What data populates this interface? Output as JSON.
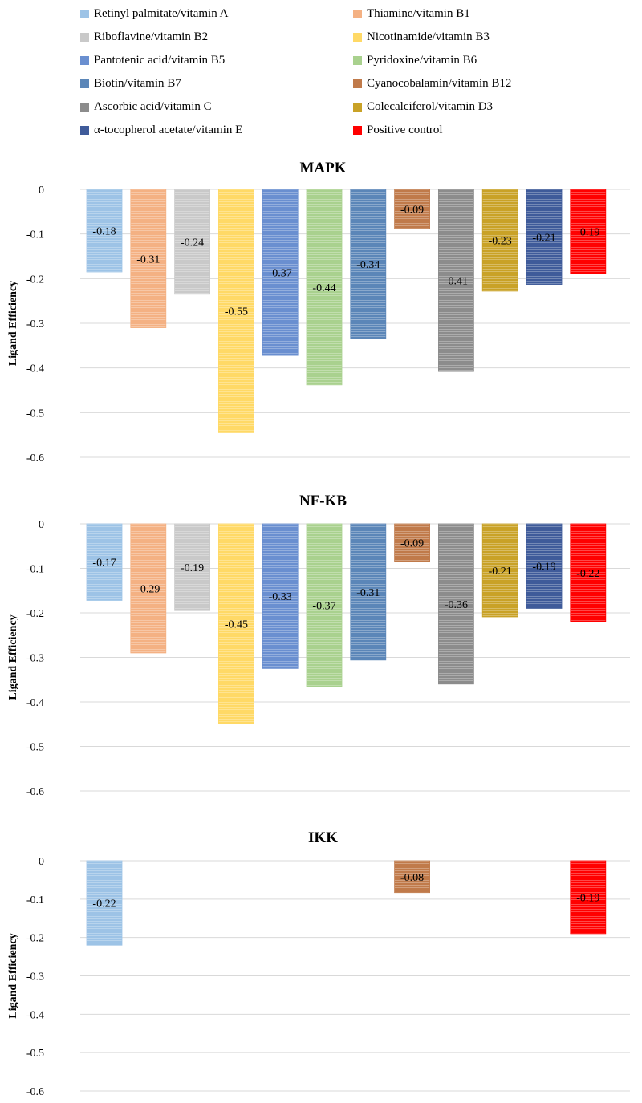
{
  "legend": {
    "items": [
      {
        "label": "Retinyl palmitate/vitamin A",
        "color": "#9DC3E6"
      },
      {
        "label": "Thiamine/vitamin B1",
        "color": "#F4B183"
      },
      {
        "label": "Riboflavine/vitamin B2",
        "color": "#C9C9C9"
      },
      {
        "label": "Nicotinamide/vitamin B3",
        "color": "#FFD966"
      },
      {
        "label": "Pantotenic acid/vitamin B5",
        "color": "#6A8FD0"
      },
      {
        "label": "Pyridoxine/vitamin B6",
        "color": "#A9D18E"
      },
      {
        "label": "Biotin/vitamin B7",
        "color": "#5B86B8"
      },
      {
        "label": "Cyanocobalamin/vitamin B12",
        "color": "#C07A4A"
      },
      {
        "label": "Ascorbic acid/vitamin C",
        "color": "#8C8C8C"
      },
      {
        "label": "Colecalciferol/vitamin D3",
        "color": "#C9A227"
      },
      {
        "label": "α-tocopherol acetate/vitamin E",
        "color": "#3F5B9A"
      },
      {
        "label": "Positive control",
        "color": "#FF0000"
      }
    ]
  },
  "chart_data": [
    {
      "type": "bar",
      "title": "MAPK",
      "ylabel": "Ligand Efficiency",
      "ylim": [
        -0.6,
        0
      ],
      "yticks": [
        "0",
        "-0.1",
        "-0.2",
        "-0.3",
        "-0.4",
        "-0.5",
        "-0.6"
      ],
      "grid": true,
      "values": [
        -0.185,
        -0.31,
        -0.235,
        -0.545,
        -0.372,
        -0.438,
        -0.335,
        -0.088,
        -0.408,
        -0.228,
        -0.213,
        -0.188
      ],
      "labels": [
        "-0.18",
        "-0.31",
        "-0.24",
        "-0.55",
        "-0.37",
        "-0.44",
        "-0.34",
        "-0.09",
        "-0.41",
        "-0.23",
        "-0.21",
        "-0.19"
      ]
    },
    {
      "type": "bar",
      "title": "NF-KB",
      "ylabel": "Ligand Efficiency",
      "ylim": [
        -0.6,
        0
      ],
      "yticks": [
        "0",
        "-0.1",
        "-0.2",
        "-0.3",
        "-0.4",
        "-0.5",
        "-0.6"
      ],
      "grid": true,
      "values": [
        -0.172,
        -0.29,
        -0.195,
        -0.448,
        -0.325,
        -0.366,
        -0.306,
        -0.085,
        -0.36,
        -0.209,
        -0.19,
        -0.22
      ],
      "labels": [
        "-0.17",
        "-0.29",
        "-0.19",
        "-0.45",
        "-0.33",
        "-0.37",
        "-0.31",
        "-0.09",
        "-0.36",
        "-0.21",
        "-0.19",
        "-0.22"
      ]
    },
    {
      "type": "bar",
      "title": "IKK",
      "ylabel": "Ligand Efficiency",
      "ylim": [
        -0.6,
        0
      ],
      "yticks": [
        "0",
        "-0.1",
        "-0.2",
        "-0.3",
        "-0.4",
        "-0.5",
        "-0.6"
      ],
      "grid": true,
      "values": [
        -0.22,
        null,
        null,
        null,
        null,
        null,
        null,
        -0.083,
        null,
        null,
        null,
        -0.19
      ],
      "labels": [
        "-0.22",
        null,
        null,
        null,
        null,
        null,
        null,
        "-0.08",
        null,
        null,
        null,
        "-0.19"
      ]
    }
  ]
}
